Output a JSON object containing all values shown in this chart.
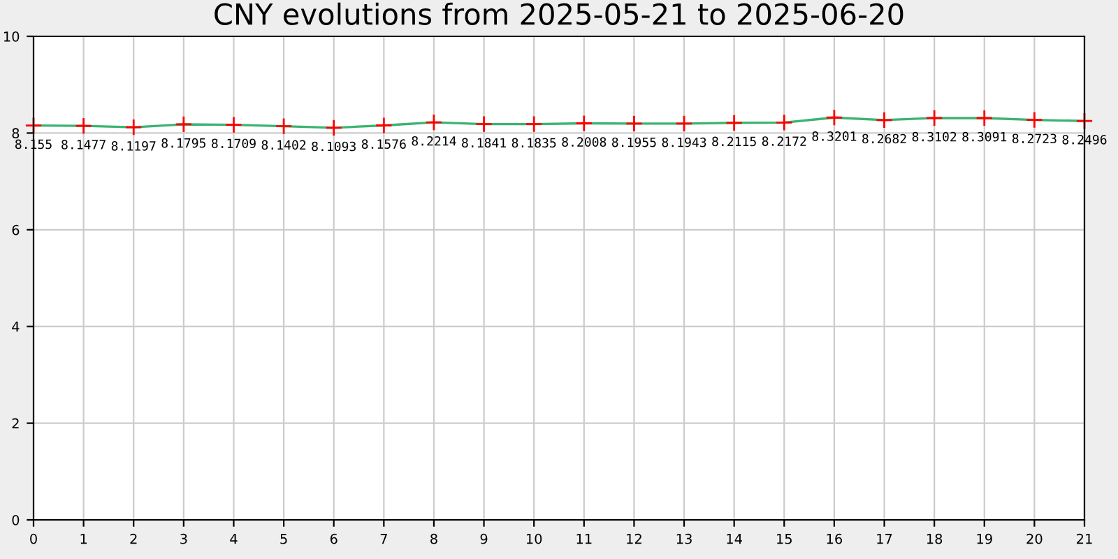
{
  "chart_data": {
    "type": "line",
    "title": "CNY evolutions from 2025-05-21 to 2025-06-20",
    "x": [
      0,
      1,
      2,
      3,
      4,
      5,
      6,
      7,
      8,
      9,
      10,
      11,
      12,
      13,
      14,
      15,
      16,
      17,
      18,
      19,
      20,
      21
    ],
    "series": [
      {
        "color": "#3cb371",
        "colors": [
          "#ff0000",
          "#ff0000",
          "#ff0000",
          "#ff0000",
          "#ff0000",
          "#ff0000",
          "#ff0000",
          "#ff0000",
          "#ff0000",
          "#ff0000",
          "#ff0000",
          "#ff0000",
          "#ff0000",
          "#ff0000",
          "#ff0000",
          "#ff0000",
          "#ff0000",
          "#ff0000",
          "#ff0000",
          "#ff0000",
          "#ff0000",
          "#ff0000"
        ],
        "values": [
          8.155,
          8.1477,
          8.1197,
          8.1795,
          8.1709,
          8.1402,
          8.1093,
          8.1576,
          8.2214,
          8.1841,
          8.1835,
          8.2008,
          8.1955,
          8.1943,
          8.2115,
          8.2172,
          8.3201,
          8.2682,
          8.3102,
          8.3091,
          8.2723,
          8.2496
        ]
      }
    ],
    "xlim": [
      0,
      21
    ],
    "xticks": [
      0,
      1,
      2,
      3,
      4,
      5,
      6,
      7,
      8,
      9,
      10,
      11,
      12,
      13,
      14,
      15,
      16,
      17,
      18,
      19,
      20,
      21
    ],
    "ylim": [
      0,
      10
    ],
    "yticks": [
      0,
      2,
      4,
      6,
      8,
      10
    ],
    "grid": true,
    "marker": "cross",
    "line_style": "solid",
    "data_labels": true
  }
}
